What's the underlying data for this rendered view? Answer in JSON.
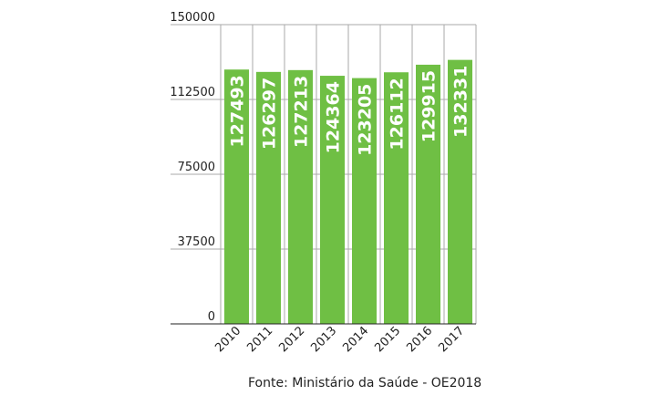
{
  "chart_data": {
    "type": "bar",
    "categories": [
      "2010",
      "2011",
      "2012",
      "2013",
      "2014",
      "2015",
      "2016",
      "2017"
    ],
    "values": [
      127493,
      126297,
      127213,
      124364,
      123205,
      126112,
      129915,
      132331
    ],
    "ylim": [
      0,
      150000
    ],
    "yticks": [
      0,
      37500,
      75000,
      112500,
      150000
    ],
    "ytick_labels": [
      "0",
      "37500",
      "75000",
      "112500",
      "150000"
    ],
    "data_labels": [
      "127493",
      "126297",
      "127213",
      "124364",
      "123205",
      "126112",
      "129915",
      "132331"
    ],
    "grid": true,
    "legend": "none",
    "colors": {
      "bar": "#6fbf44",
      "grid": "#aaaaaa",
      "axis": "#222222"
    }
  },
  "footer": {
    "source": "Fonte: Ministário da Saúde - OE2018"
  }
}
